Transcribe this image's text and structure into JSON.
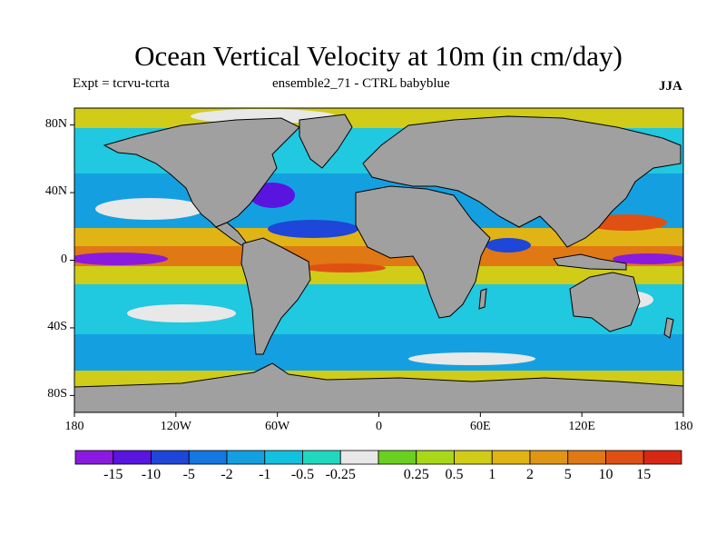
{
  "title": "Ocean Vertical Velocity at 10m (in cm/day)",
  "subtitle_left": "Expt = tcrvu-tcrta",
  "subtitle_center": "ensemble2_71 - CTRL babyblue",
  "season": "JJA",
  "map": {
    "lat_range": [
      -90,
      90
    ],
    "lon_range": [
      -180,
      180
    ],
    "lat_ticks": [
      {
        "value": 80,
        "label": "80N"
      },
      {
        "value": 40,
        "label": "40N"
      },
      {
        "value": 0,
        "label": "0"
      },
      {
        "value": -40,
        "label": "40S"
      },
      {
        "value": -80,
        "label": "80S"
      }
    ],
    "lon_ticks": [
      {
        "value": -180,
        "label": "180"
      },
      {
        "value": -120,
        "label": "120W"
      },
      {
        "value": -60,
        "label": "60W"
      },
      {
        "value": 0,
        "label": "0"
      },
      {
        "value": 60,
        "label": "60E"
      },
      {
        "value": 120,
        "label": "120E"
      },
      {
        "value": 180,
        "label": "180"
      }
    ],
    "land_color": "#a0a0a0"
  },
  "colorbar": {
    "colors": [
      "#8a1ae0",
      "#5a14e0",
      "#1e46d8",
      "#1478e0",
      "#14a0e0",
      "#14c0e0",
      "#20d8c0",
      "#e8e8e8",
      "#6ad020",
      "#a8d818",
      "#d0cc18",
      "#e0b414",
      "#e09614",
      "#e07814",
      "#e05014",
      "#d82814"
    ],
    "labels": [
      "-15",
      "-10",
      "-5",
      "-2",
      "-1",
      "-0.5",
      "-0.25",
      "0.25",
      "0.5",
      "1",
      "2",
      "5",
      "10",
      "15"
    ]
  }
}
